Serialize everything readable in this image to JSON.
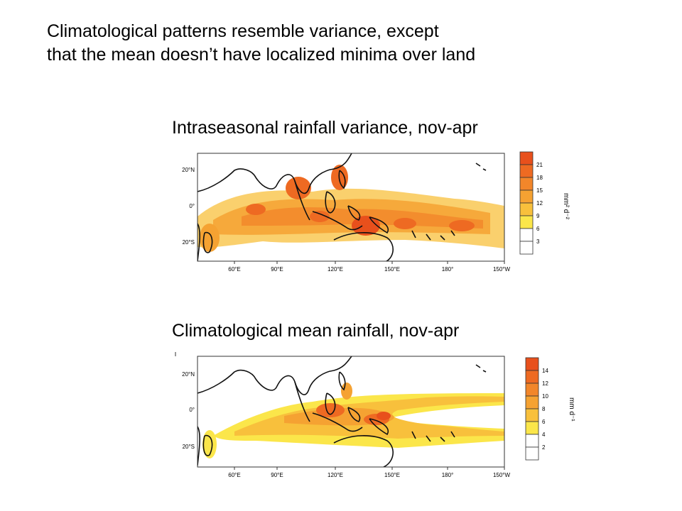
{
  "headline": {
    "line1": "Climatological patterns resemble variance, except",
    "line2": "that the mean doesn’t have localized minima over land"
  },
  "maps": [
    {
      "title": "Intraseasonal rainfall variance, nov-apr",
      "lat_labels": [
        "20°N",
        "0°",
        "20°S"
      ],
      "lon_labels": [
        "60°E",
        "90°E",
        "120°E",
        "150°E",
        "180°",
        "150°W"
      ],
      "legend": {
        "tick_labels": [
          "21",
          "18",
          "15",
          "12",
          "9",
          "6",
          "3"
        ],
        "colors": [
          "#e8501c",
          "#ee6a22",
          "#f2862a",
          "#f5a232",
          "#f8c03c",
          "#fbe64a",
          "#ffffff",
          "#ffffff"
        ],
        "units": "mm² d⁻²"
      }
    },
    {
      "title": "Climatological mean rainfall, nov-apr",
      "lat_labels": [
        "20°N",
        "0°",
        "20°S"
      ],
      "lon_labels": [
        "60°E",
        "90°E",
        "120°E",
        "150°E",
        "180°",
        "150°W"
      ],
      "legend": {
        "tick_labels": [
          "14",
          "12",
          "10",
          "8",
          "6",
          "4",
          "2"
        ],
        "colors": [
          "#e8501c",
          "#ee6a22",
          "#f2862a",
          "#f5a232",
          "#f8c03c",
          "#fbe64a",
          "#ffffff",
          "#ffffff"
        ],
        "units": "mm d⁻¹"
      }
    }
  ]
}
